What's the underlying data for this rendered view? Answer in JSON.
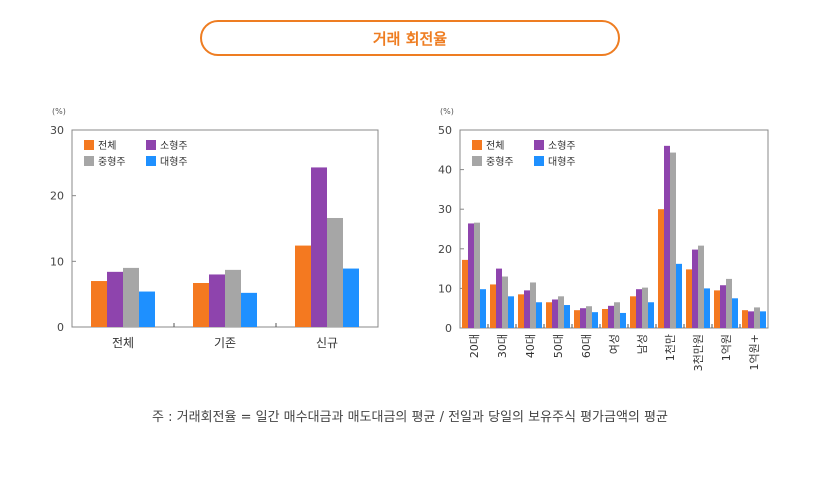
{
  "title": "거래 회전율",
  "colors": {
    "전체": "#f47920",
    "소형주": "#8e44ad",
    "중형주": "#a6a6a6",
    "대형주": "#1e90ff",
    "accent": "#ee7d22"
  },
  "chart_data": [
    {
      "type": "bar",
      "unit_label": "(%)",
      "categories": [
        "전체",
        "기존",
        "신규"
      ],
      "series": [
        {
          "name": "전체",
          "values": [
            7.0,
            6.7,
            12.4
          ]
        },
        {
          "name": "소형주",
          "values": [
            8.4,
            8.0,
            24.3
          ]
        },
        {
          "name": "중형주",
          "values": [
            9.0,
            8.7,
            16.6
          ]
        },
        {
          "name": "대형주",
          "values": [
            5.4,
            5.2,
            8.9
          ]
        }
      ],
      "ylim": [
        0,
        30
      ],
      "yticks": [
        0,
        10,
        20,
        30
      ],
      "legend": "top-left"
    },
    {
      "type": "bar",
      "unit_label": "(%)",
      "categories": [
        "20대",
        "30대",
        "40대",
        "50대",
        "60대",
        "여성",
        "남성",
        "1천만",
        "3천만원",
        "1억원",
        "1억원+"
      ],
      "series": [
        {
          "name": "전체",
          "values": [
            17.2,
            11.0,
            8.5,
            6.5,
            4.5,
            4.8,
            8.0,
            30.0,
            14.8,
            9.5,
            4.5
          ]
        },
        {
          "name": "소형주",
          "values": [
            26.4,
            15.0,
            9.5,
            7.2,
            5.0,
            5.6,
            9.8,
            46.0,
            19.8,
            10.8,
            4.2
          ]
        },
        {
          "name": "중형주",
          "values": [
            26.6,
            13.0,
            11.5,
            8.0,
            5.5,
            6.5,
            10.2,
            44.3,
            20.8,
            12.4,
            5.2
          ]
        },
        {
          "name": "대형주",
          "values": [
            9.8,
            8.0,
            6.5,
            5.8,
            4.0,
            3.8,
            6.5,
            16.2,
            10.0,
            7.5,
            4.2
          ]
        }
      ],
      "ylim": [
        0,
        50
      ],
      "yticks": [
        0,
        10,
        20,
        30,
        40,
        50
      ],
      "legend": "top-left"
    }
  ],
  "footnote": "주 : 거래회전율 = 일간 매수대금과 매도대금의 평균 / 전일과 당일의 보유주식 평가금액의 평균"
}
